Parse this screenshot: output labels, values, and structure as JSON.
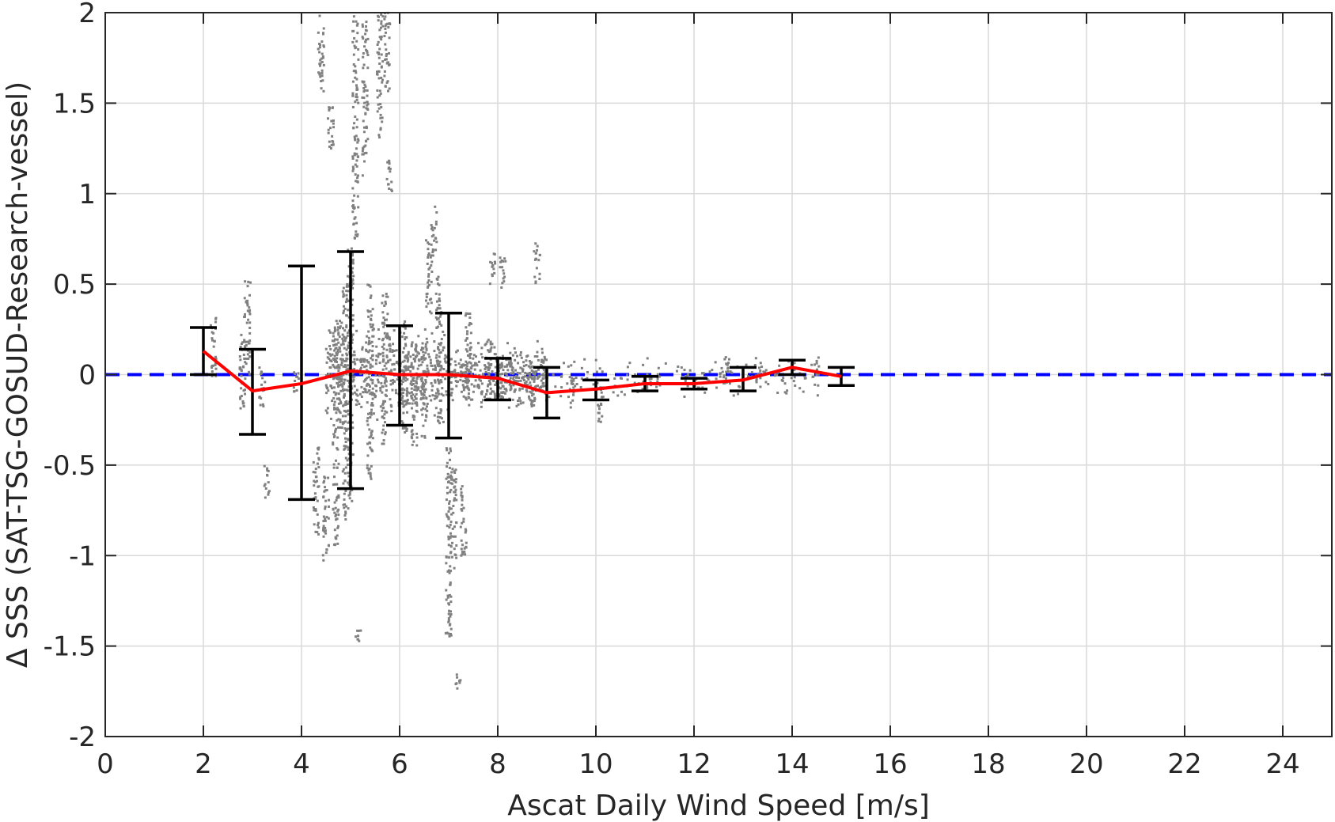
{
  "chart_data": {
    "type": "scatter",
    "xlabel": "Ascat Daily Wind Speed [m/s]",
    "ylabel": "Δ SSS (SAT-TSG-GOSUD-Research-vessel)",
    "xlim": [
      0,
      25
    ],
    "ylim": [
      -2,
      2
    ],
    "xticks": [
      "0",
      "2",
      "4",
      "6",
      "8",
      "10",
      "12",
      "14",
      "16",
      "18",
      "20",
      "22",
      "24"
    ],
    "yticks": [
      "-2",
      "-1.5",
      "-1",
      "-0.5",
      "0",
      "0.5",
      "1",
      "1.5",
      "2"
    ],
    "grid": true,
    "zero_line": {
      "y": 0,
      "color": "#0000ff",
      "style": "dashed"
    },
    "mean_line": {
      "color": "#ff0000",
      "x": [
        2,
        3,
        4,
        5,
        6,
        7,
        8,
        9,
        10,
        11,
        12,
        13,
        14,
        15
      ],
      "y": [
        0.13,
        -0.09,
        -0.05,
        0.02,
        0.0,
        0.0,
        -0.02,
        -0.1,
        -0.08,
        -0.05,
        -0.05,
        -0.03,
        0.04,
        -0.01
      ]
    },
    "error_bars": {
      "color": "#000000",
      "x": [
        2,
        3,
        4,
        5,
        6,
        7,
        8,
        9,
        10,
        11,
        12,
        13,
        14,
        15
      ],
      "upper": [
        0.26,
        0.14,
        0.6,
        0.68,
        0.27,
        0.34,
        0.09,
        0.04,
        -0.03,
        -0.01,
        -0.02,
        0.04,
        0.08,
        0.04
      ],
      "lower": [
        0.0,
        -0.33,
        -0.69,
        -0.63,
        -0.28,
        -0.35,
        -0.14,
        -0.24,
        -0.14,
        -0.09,
        -0.08,
        -0.09,
        0.0,
        -0.06
      ]
    },
    "scatter_color": "#808080",
    "scatter_clusters": [
      {
        "x": 2.2,
        "y_min": -0.02,
        "y_max": 0.33
      },
      {
        "x": 2.8,
        "y_min": -0.2,
        "y_max": 0.33
      },
      {
        "x": 2.9,
        "y_min": 0.0,
        "y_max": 0.55
      },
      {
        "x": 3.3,
        "y_min": -0.68,
        "y_max": -0.5
      },
      {
        "x": 3.2,
        "y_min": -0.18,
        "y_max": 0.05
      },
      {
        "x": 3.9,
        "y_min": -0.1,
        "y_max": 0.05
      },
      {
        "x": 4.3,
        "y_min": -0.9,
        "y_max": -0.4
      },
      {
        "x": 4.4,
        "y_min": 1.55,
        "y_max": 2.0
      },
      {
        "x": 4.5,
        "y_min": -1.05,
        "y_max": -0.55
      },
      {
        "x": 4.6,
        "y_min": 1.2,
        "y_max": 1.5
      },
      {
        "x": 4.7,
        "y_min": -0.95,
        "y_max": 0.35
      },
      {
        "x": 4.8,
        "y_min": -0.3,
        "y_max": 0.3
      },
      {
        "x": 4.9,
        "y_min": -0.8,
        "y_max": 0.5
      },
      {
        "x": 5.0,
        "y_min": -0.7,
        "y_max": 0.7
      },
      {
        "x": 5.1,
        "y_min": 0.75,
        "y_max": 2.0
      },
      {
        "x": 5.15,
        "y_min": -1.48,
        "y_max": -1.38
      },
      {
        "x": 5.3,
        "y_min": 1.1,
        "y_max": 1.95
      },
      {
        "x": 5.4,
        "y_min": -0.6,
        "y_max": 0.5
      },
      {
        "x": 5.6,
        "y_min": 1.3,
        "y_max": 2.0
      },
      {
        "x": 5.7,
        "y_min": -0.4,
        "y_max": 0.45
      },
      {
        "x": 5.75,
        "y_min": 1.55,
        "y_max": 2.0
      },
      {
        "x": 5.8,
        "y_min": 1.0,
        "y_max": 1.2
      },
      {
        "x": 6.1,
        "y_min": -0.35,
        "y_max": 0.3
      },
      {
        "x": 6.3,
        "y_min": -0.4,
        "y_max": 0.2
      },
      {
        "x": 6.5,
        "y_min": -0.35,
        "y_max": 0.2
      },
      {
        "x": 6.6,
        "y_min": 0.3,
        "y_max": 0.75
      },
      {
        "x": 6.7,
        "y_min": 0.65,
        "y_max": 0.93
      },
      {
        "x": 6.8,
        "y_min": -0.3,
        "y_max": 0.55
      },
      {
        "x": 7.0,
        "y_min": -1.45,
        "y_max": -0.4
      },
      {
        "x": 7.1,
        "y_min": -1.1,
        "y_max": -0.5
      },
      {
        "x": 7.2,
        "y_min": -1.75,
        "y_max": -1.65
      },
      {
        "x": 7.3,
        "y_min": -1.0,
        "y_max": -0.6
      },
      {
        "x": 7.4,
        "y_min": -0.2,
        "y_max": 0.35
      },
      {
        "x": 7.8,
        "y_min": -0.15,
        "y_max": 0.2
      },
      {
        "x": 7.9,
        "y_min": 0.5,
        "y_max": 0.68
      },
      {
        "x": 8.1,
        "y_min": 0.45,
        "y_max": 0.65
      },
      {
        "x": 8.3,
        "y_min": -0.1,
        "y_max": 0.1
      },
      {
        "x": 8.7,
        "y_min": -0.2,
        "y_max": 0.05
      },
      {
        "x": 8.8,
        "y_min": 0.5,
        "y_max": 0.73
      },
      {
        "x": 9.5,
        "y_min": -0.2,
        "y_max": 0.0
      },
      {
        "x": 10.1,
        "y_min": -0.27,
        "y_max": -0.05
      },
      {
        "x": 11.0,
        "y_min": -0.1,
        "y_max": 0.0
      },
      {
        "x": 12.0,
        "y_min": -0.08,
        "y_max": -0.02
      },
      {
        "x": 12.7,
        "y_min": -0.05,
        "y_max": 0.1
      },
      {
        "x": 13.3,
        "y_min": -0.05,
        "y_max": 0.1
      },
      {
        "x": 14.0,
        "y_min": -0.02,
        "y_max": 0.08
      },
      {
        "x": 14.5,
        "y_min": 0.0,
        "y_max": 0.1
      }
    ]
  }
}
